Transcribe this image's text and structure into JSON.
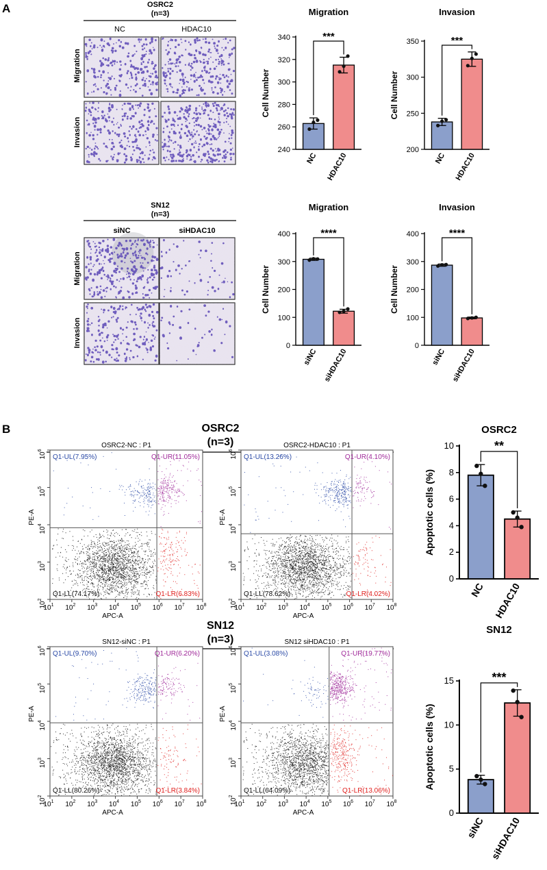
{
  "panel_labels": {
    "a": "A",
    "b": "B"
  },
  "colors": {
    "blue": "#8B9FCB",
    "red": "#F08C8C",
    "violet": "#5B47B5",
    "stain_bg": "#E8E2EE",
    "ul": "#2B4AA6",
    "ur": "#A02A9A",
    "lr": "#E0201E"
  },
  "panel_a": {
    "top": {
      "cell_line": "OSRC2",
      "n": "(n=3)",
      "groups": [
        "NC",
        "HDAC10"
      ],
      "rows": [
        "Migration",
        "Invasion"
      ]
    },
    "bottom": {
      "cell_line": "SN12",
      "n": "(n=3)",
      "groups": [
        "siNC",
        "siHDAC10"
      ],
      "rows": [
        "Migration",
        "Invasion"
      ]
    }
  },
  "panel_b": {
    "top": {
      "cell_line": "OSRC2",
      "n": "(n=3)",
      "plots": [
        {
          "title": "OSRC2-NC : P1",
          "ul": "Q1-UL(7.95%)",
          "ur": "Q1-UR(11.05%)",
          "ll": "Q1-LL(74.17%)",
          "lr": "Q1-LR(6.83%)"
        },
        {
          "title": "OSRC2-HDAC10 : P1",
          "ul": "Q1-UL(13.26%)",
          "ur": "Q1-UR(4.10%)",
          "ll": "Q1-LL(78.62%)",
          "lr": "Q1-LR(4.02%)"
        }
      ]
    },
    "bottom": {
      "cell_line": "SN12",
      "n": "(n=3)",
      "plots": [
        {
          "title": "SN12-siNC : P1",
          "ul": "Q1-UL(9.70%)",
          "ur": "Q1-UR(6.20%)",
          "ll": "Q1-LL(80.26%)",
          "lr": "Q1-LR(3.84%)"
        },
        {
          "title": "SN12 siHDAC10 : P1",
          "ul": "Q1-UL(3.08%)",
          "ur": "Q1-UR(19.77%)",
          "ll": "Q1-LL(64.09%)",
          "lr": "Q1-LR(13.06%)"
        }
      ]
    },
    "flow_axes": {
      "xlabel": "APC-A",
      "ylabel": "PE-A",
      "x_ticks": [
        "1",
        "2",
        "3",
        "4",
        "5",
        "6",
        "7",
        "8"
      ],
      "y_ticks": [
        "2",
        "3",
        "4",
        "5",
        "6"
      ],
      "tick_base": "10"
    }
  },
  "chart_data": [
    {
      "type": "bar",
      "title": "Migration",
      "ylabel": "Cell Number",
      "categories": [
        "NC",
        "HDAC10"
      ],
      "values": [
        263,
        315
      ],
      "errors": [
        5,
        7
      ],
      "points": [
        [
          258,
          266,
          264
        ],
        [
          309,
          323,
          314
        ]
      ],
      "ylim": [
        240,
        340
      ],
      "yticks": [
        240,
        260,
        280,
        300,
        320,
        340
      ],
      "significance": "***"
    },
    {
      "type": "bar",
      "title": "Invasion",
      "ylabel": "Cell Number",
      "categories": [
        "NC",
        "HDAC10"
      ],
      "values": [
        238,
        325
      ],
      "errors": [
        5,
        10
      ],
      "points": [
        [
          233,
          241,
          239
        ],
        [
          316,
          332,
          326
        ]
      ],
      "ylim": [
        200,
        350
      ],
      "yticks": [
        200,
        250,
        300,
        350
      ],
      "significance": "***"
    },
    {
      "type": "bar",
      "title": "Migration",
      "ylabel": "Cell Number",
      "categories": [
        "siNC",
        "siHDAC10"
      ],
      "values": [
        308,
        122
      ],
      "errors": [
        4,
        7
      ],
      "points": [
        [
          305,
          309,
          310
        ],
        [
          118,
          130,
          122
        ]
      ],
      "ylim": [
        0,
        400
      ],
      "yticks": [
        0,
        100,
        200,
        300,
        400
      ],
      "significance": "****"
    },
    {
      "type": "bar",
      "title": "Invasion",
      "ylabel": "Cell Number",
      "categories": [
        "siNC",
        "siHDAC10"
      ],
      "values": [
        287,
        98
      ],
      "errors": [
        4,
        3
      ],
      "points": [
        [
          284,
          289,
          288
        ],
        [
          96,
          100,
          98
        ]
      ],
      "ylim": [
        0,
        400
      ],
      "yticks": [
        0,
        100,
        200,
        300,
        400
      ],
      "significance": "****"
    },
    {
      "type": "bar",
      "title": "OSRC2",
      "ylabel": "Apoptotic cells (%)",
      "categories": [
        "NC",
        "HDAC10"
      ],
      "values": [
        7.8,
        4.5
      ],
      "errors": [
        0.8,
        0.6
      ],
      "points": [
        [
          8.5,
          7.0,
          7.9
        ],
        [
          5.0,
          3.9,
          4.6
        ]
      ],
      "ylim": [
        0,
        10
      ],
      "yticks": [
        0,
        2,
        4,
        6,
        8,
        10
      ],
      "significance": "**"
    },
    {
      "type": "bar",
      "title": "SN12",
      "ylabel": "Apoptotic cells (%)",
      "categories": [
        "siNC",
        "siHDAC10"
      ],
      "values": [
        3.8,
        12.5
      ],
      "errors": [
        0.5,
        1.5
      ],
      "points": [
        [
          4.2,
          3.3,
          3.8
        ],
        [
          13.9,
          10.9,
          12.6
        ]
      ],
      "ylim": [
        0,
        15
      ],
      "yticks": [
        0,
        5,
        10,
        15
      ],
      "significance": "***"
    }
  ]
}
